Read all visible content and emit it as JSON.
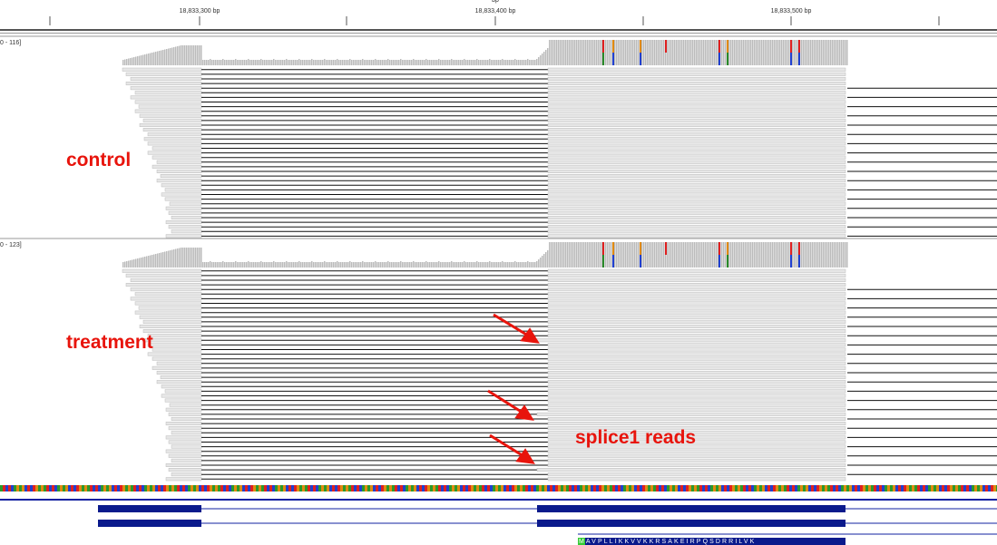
{
  "ruler": {
    "top_label": "bp",
    "labels": [
      "18,833,300 bp",
      "18,833,400 bp",
      "18,833,500 bp"
    ]
  },
  "tracks": [
    {
      "range": "0 - 116]",
      "annotation": "control"
    },
    {
      "range": "0 - 123]",
      "annotation": "treatment"
    }
  ],
  "callout": "splice1 reads",
  "translation": "MAVPLLIKKVVKKRSAKEIRPQSDRRILVK"
}
